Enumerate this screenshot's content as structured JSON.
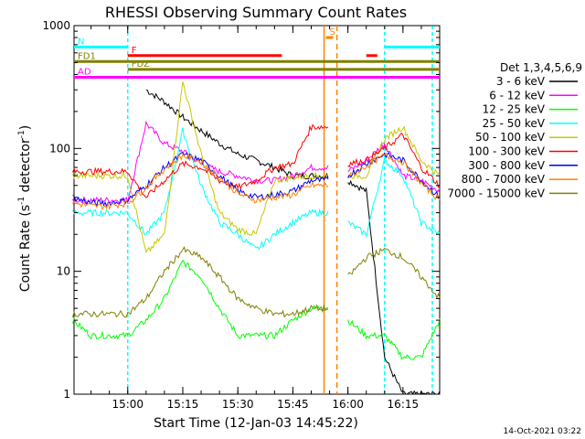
{
  "chart_data": {
    "type": "line",
    "title": "RHESSI Observing Summary Count Rates",
    "xlabel": "Start Time (12-Jan-03 14:45:22)",
    "ylabel": "Count Rate (s⁻¹ detector⁻¹)",
    "ylabel_main": "Count Rate (s",
    "ylabel_sup1": "-1",
    "ylabel_mid": " detector",
    "ylabel_sup2": "-1",
    "ylabel_end": ")",
    "y_scale": "log",
    "ylim": [
      1,
      1000
    ],
    "xlim": [
      "14:45:22",
      "16:25:00"
    ],
    "x_ticks": [
      "15:00",
      "15:15",
      "15:30",
      "15:45",
      "16:00",
      "16:15"
    ],
    "y_ticks": [
      "1",
      "10",
      "100",
      "1000"
    ],
    "timestamp": "14-Oct-2021 03:22",
    "legend_header": "Det 1,3,4,5,6,9",
    "legend_position": "right",
    "flag_bars": [
      {
        "label": "N",
        "color": "#00ffff",
        "segments": [
          [
            "14:45:22",
            "15:00:00"
          ],
          [
            "16:10:00",
            "16:25:00"
          ]
        ],
        "level": 670
      },
      {
        "label": "F",
        "color": "#ff0000",
        "segments": [
          [
            "15:00:00",
            "15:42:00"
          ],
          [
            "16:05:00",
            "16:08:00"
          ]
        ],
        "level": 570
      },
      {
        "label": "FD1",
        "color": "#808000",
        "segments": [
          [
            "14:45:22",
            "16:25:00"
          ]
        ],
        "level": 510
      },
      {
        "label": "FDZ",
        "color": "#808000",
        "segments": [
          [
            "15:00:00",
            "16:25:00"
          ]
        ],
        "level": 440
      },
      {
        "label": "AD",
        "color": "#ff00ff",
        "segments": [
          [
            "14:45:22",
            "16:25:00"
          ]
        ],
        "level": 380
      },
      {
        "label": "S",
        "color": "#ff8000",
        "segments": [
          [
            "15:54:00",
            "15:56:00"
          ]
        ],
        "level": 800
      }
    ],
    "series": [
      {
        "name": "3 - 6 keV",
        "color": "#000000",
        "x": [
          "15:00",
          "15:05",
          "15:10",
          "15:15",
          "15:20",
          "15:25",
          "15:30",
          "15:35",
          "15:40",
          "15:45",
          "15:50",
          "15:55",
          "16:00",
          "16:05",
          "16:10",
          "16:15",
          "16:20",
          "16:25"
        ],
        "y": [
          null,
          300,
          240,
          180,
          140,
          110,
          90,
          80,
          70,
          60,
          60,
          null,
          55,
          45,
          2,
          1,
          1,
          1
        ]
      },
      {
        "name": "6 - 12 keV",
        "color": "#ff00ff",
        "x": [
          "14:45",
          "14:50",
          "14:55",
          "15:00",
          "15:05",
          "15:10",
          "15:15",
          "15:20",
          "15:25",
          "15:30",
          "15:35",
          "15:40",
          "15:45",
          "15:50",
          "15:55",
          "16:00",
          "16:05",
          "16:10",
          "16:15",
          "16:20",
          "16:25"
        ],
        "y": [
          38,
          38,
          38,
          38,
          160,
          110,
          95,
          75,
          65,
          60,
          55,
          55,
          60,
          70,
          null,
          65,
          80,
          110,
          60,
          55,
          45
        ]
      },
      {
        "name": "12 - 25 keV",
        "color": "#00ff00",
        "x": [
          "14:45",
          "14:50",
          "14:55",
          "15:00",
          "15:05",
          "15:10",
          "15:15",
          "15:20",
          "15:25",
          "15:30",
          "15:35",
          "15:40",
          "15:45",
          "15:50",
          "15:55",
          "16:00",
          "16:05",
          "16:10",
          "16:15",
          "16:20",
          "16:25"
        ],
        "y": [
          4,
          3,
          3,
          3,
          4,
          6,
          12,
          9,
          5,
          3,
          3,
          3,
          4,
          5,
          null,
          4,
          3,
          3,
          2,
          2,
          4
        ]
      },
      {
        "name": "25 - 50 keV",
        "color": "#00ffff",
        "x": [
          "14:45",
          "14:50",
          "14:55",
          "15:00",
          "15:05",
          "15:10",
          "15:15",
          "15:20",
          "15:25",
          "15:30",
          "15:35",
          "15:40",
          "15:45",
          "15:50",
          "15:55",
          "16:00",
          "16:05",
          "16:10",
          "16:15",
          "16:20",
          "16:25"
        ],
        "y": [
          30,
          30,
          30,
          30,
          20,
          30,
          140,
          50,
          25,
          20,
          15,
          20,
          25,
          30,
          null,
          25,
          20,
          80,
          60,
          25,
          20
        ]
      },
      {
        "name": "50 - 100 keV",
        "color": "#c8c800",
        "x": [
          "14:45",
          "14:50",
          "14:55",
          "15:00",
          "15:05",
          "15:10",
          "15:15",
          "15:20",
          "15:25",
          "15:30",
          "15:35",
          "15:40",
          "15:45",
          "15:50",
          "15:55",
          "16:00",
          "16:05",
          "16:10",
          "16:15",
          "16:20",
          "16:25"
        ],
        "y": [
          60,
          60,
          60,
          60,
          14,
          20,
          350,
          90,
          30,
          22,
          20,
          55,
          58,
          60,
          null,
          60,
          60,
          120,
          150,
          80,
          60
        ]
      },
      {
        "name": "100 - 300 keV",
        "color": "#ff0000",
        "x": [
          "14:45",
          "14:50",
          "14:55",
          "15:00",
          "15:05",
          "15:10",
          "15:15",
          "15:20",
          "15:25",
          "15:30",
          "15:35",
          "15:40",
          "15:45",
          "15:50",
          "15:55",
          "16:00",
          "16:05",
          "16:10",
          "16:15",
          "16:20",
          "16:25"
        ],
        "y": [
          65,
          65,
          65,
          65,
          40,
          55,
          75,
          70,
          55,
          48,
          55,
          70,
          75,
          150,
          null,
          75,
          80,
          100,
          130,
          70,
          50
        ]
      },
      {
        "name": "300 - 800 keV",
        "color": "#0000ff",
        "x": [
          "14:45",
          "14:50",
          "14:55",
          "15:00",
          "15:05",
          "15:10",
          "15:15",
          "15:20",
          "15:25",
          "15:30",
          "15:35",
          "15:40",
          "15:45",
          "15:50",
          "15:55",
          "16:00",
          "16:05",
          "16:10",
          "16:15",
          "16:20",
          "16:25"
        ],
        "y": [
          40,
          36,
          36,
          38,
          50,
          70,
          90,
          80,
          60,
          45,
          40,
          42,
          45,
          55,
          null,
          60,
          75,
          90,
          80,
          55,
          40
        ]
      },
      {
        "name": "800 - 7000 keV",
        "color": "#ff8000",
        "x": [
          "14:45",
          "14:50",
          "14:55",
          "15:00",
          "15:05",
          "15:10",
          "15:15",
          "15:20",
          "15:25",
          "15:30",
          "15:35",
          "15:40",
          "15:45",
          "15:50",
          "15:55",
          "16:00",
          "16:05",
          "16:10",
          "16:15",
          "16:20",
          "16:25"
        ],
        "y": [
          36,
          34,
          34,
          36,
          48,
          68,
          88,
          78,
          58,
          43,
          38,
          40,
          42,
          50,
          null,
          58,
          72,
          88,
          78,
          52,
          38
        ]
      },
      {
        "name": "7000 - 15000 keV",
        "color": "#808000",
        "x": [
          "14:45",
          "14:50",
          "14:55",
          "15:00",
          "15:05",
          "15:10",
          "15:15",
          "15:20",
          "15:25",
          "15:30",
          "15:35",
          "15:40",
          "15:45",
          "15:50",
          "15:55",
          "16:00",
          "16:05",
          "16:10",
          "16:15",
          "16:20",
          "16:25"
        ],
        "y": [
          4.5,
          4.5,
          4.5,
          4.5,
          6,
          10,
          15,
          13,
          9,
          6,
          5,
          4.5,
          4.5,
          5,
          null,
          9,
          13,
          15,
          13,
          9,
          6
        ]
      }
    ]
  },
  "colors": {
    "N": "#00ffff",
    "F": "#ff0000",
    "FD1": "#808000",
    "FDZ": "#808000",
    "AD": "#ff00ff",
    "S": "#ff8000",
    "vline_cyan": "#00ffff",
    "vline_orange": "#ff8000"
  }
}
